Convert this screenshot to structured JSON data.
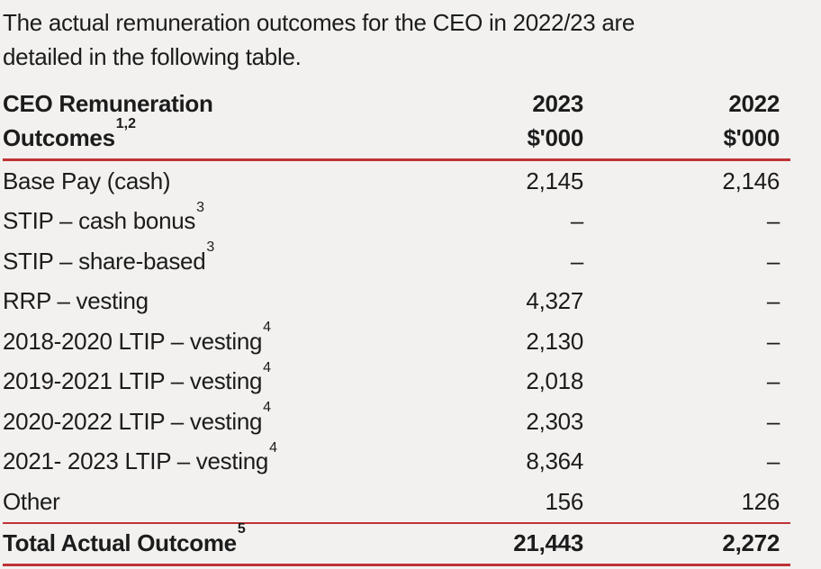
{
  "intro": {
    "line1": "The actual remuneration outcomes for the CEO in 2022/23 are",
    "line2": "detailed in the following table."
  },
  "table": {
    "header": {
      "title_line1": "CEO Remuneration",
      "title_line2": "Outcomes",
      "title_sup": "1,2",
      "col_2023": {
        "year": "2023",
        "unit": "$'000"
      },
      "col_2022": {
        "year": "2022",
        "unit": "$'000"
      }
    },
    "rows": [
      {
        "label": "Base Pay (cash)",
        "sup": "",
        "v2023": "2,145",
        "v2022": "2,146"
      },
      {
        "label": "STIP – cash bonus",
        "sup": "3",
        "v2023": "–",
        "v2022": "–"
      },
      {
        "label": "STIP – share-based",
        "sup": "3",
        "v2023": "–",
        "v2022": "–"
      },
      {
        "label": "RRP – vesting",
        "sup": "",
        "v2023": "4,327",
        "v2022": "–"
      },
      {
        "label": "2018-2020 LTIP – vesting",
        "sup": "4",
        "v2023": "2,130",
        "v2022": "–"
      },
      {
        "label": "2019-2021 LTIP – vesting",
        "sup": "4",
        "v2023": "2,018",
        "v2022": "–"
      },
      {
        "label": "2020-2022 LTIP – vesting",
        "sup": "4",
        "v2023": "2,303",
        "v2022": "–"
      },
      {
        "label": "2021- 2023 LTIP – vesting",
        "sup": "4",
        "v2023": "8,364",
        "v2022": "–"
      },
      {
        "label": "Other",
        "sup": "",
        "v2023": "156",
        "v2022": "126"
      }
    ],
    "total": {
      "label": "Total Actual Outcome",
      "sup": "5",
      "v2023": "21,443",
      "v2022": "2,272"
    }
  },
  "colors": {
    "rule_red": "#bf3236",
    "background": "#f2f1ef",
    "text": "#1c1c1c"
  }
}
